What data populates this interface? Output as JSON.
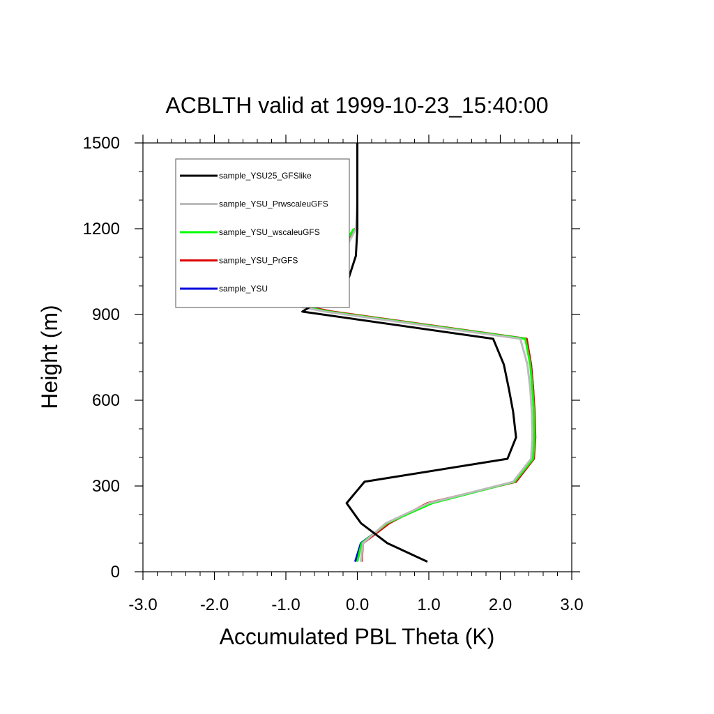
{
  "chart_data": {
    "type": "line",
    "title": "ACBLTH valid at 1999-10-23_15:40:00",
    "xlabel": "Accumulated PBL Theta (K)",
    "ylabel": "Height (m)",
    "xlim": [
      -3.0,
      3.0
    ],
    "ylim": [
      0,
      1500
    ],
    "x_ticks": [
      "-3.0",
      "-2.0",
      "-1.0",
      "0.0",
      "1.0",
      "2.0",
      "3.0"
    ],
    "y_ticks": [
      "0",
      "300",
      "600",
      "900",
      "1200",
      "1500"
    ],
    "legend_placement": "top-left",
    "grid": false,
    "series": [
      {
        "name": "sample_YSU25_GFSlike",
        "color": "#000000",
        "points": [
          [
            0.98,
            35
          ],
          [
            0.42,
            100
          ],
          [
            0.05,
            170
          ],
          [
            -0.15,
            240
          ],
          [
            0.1,
            315
          ],
          [
            2.1,
            395
          ],
          [
            2.22,
            470
          ],
          [
            2.18,
            560
          ],
          [
            2.12,
            640
          ],
          [
            2.05,
            725
          ],
          [
            1.9,
            815
          ],
          [
            -0.77,
            910
          ],
          [
            -0.15,
            1005
          ],
          [
            -0.02,
            1105
          ],
          [
            0.0,
            1200
          ],
          [
            0.0,
            1300
          ],
          [
            0.0,
            1400
          ],
          [
            0.0,
            1500
          ]
        ]
      },
      {
        "name": "sample_YSU_PrwscaleuGFS",
        "color": "#bbbbbb",
        "points": [
          [
            0.05,
            35
          ],
          [
            0.08,
            100
          ],
          [
            0.4,
            170
          ],
          [
            1.0,
            240
          ],
          [
            2.18,
            315
          ],
          [
            2.43,
            395
          ],
          [
            2.45,
            470
          ],
          [
            2.44,
            560
          ],
          [
            2.42,
            640
          ],
          [
            2.38,
            725
          ],
          [
            2.28,
            815
          ],
          [
            -0.45,
            910
          ],
          [
            -2.45,
            1005
          ],
          [
            -0.22,
            1105
          ],
          [
            -0.02,
            1200
          ],
          [
            0.0,
            1300
          ]
        ]
      },
      {
        "name": "sample_YSU_wscaleuGFS",
        "color": "#00ff00",
        "points": [
          [
            0.0,
            35
          ],
          [
            0.06,
            100
          ],
          [
            0.42,
            170
          ],
          [
            1.05,
            240
          ],
          [
            2.2,
            315
          ],
          [
            2.46,
            395
          ],
          [
            2.48,
            470
          ],
          [
            2.47,
            560
          ],
          [
            2.45,
            640
          ],
          [
            2.42,
            725
          ],
          [
            2.35,
            815
          ],
          [
            -0.4,
            910
          ],
          [
            -2.4,
            1005
          ],
          [
            -0.28,
            1105
          ],
          [
            -0.05,
            1200
          ]
        ]
      },
      {
        "name": "sample_YSU_PrGFS",
        "color": "#dd0000",
        "points": [
          [
            0.06,
            35
          ],
          [
            0.08,
            100
          ],
          [
            0.45,
            170
          ],
          [
            0.98,
            240
          ],
          [
            2.22,
            315
          ],
          [
            2.47,
            395
          ],
          [
            2.49,
            470
          ],
          [
            2.48,
            560
          ],
          [
            2.46,
            640
          ],
          [
            2.43,
            725
          ],
          [
            2.37,
            815
          ],
          [
            -0.35,
            910
          ],
          [
            -2.3,
            1005
          ],
          [
            -0.3,
            1105
          ],
          [
            -0.03,
            1200
          ]
        ]
      },
      {
        "name": "sample_YSU",
        "color": "#0000dd",
        "points": [
          [
            -0.03,
            35
          ],
          [
            0.05,
            100
          ],
          [
            0.43,
            170
          ],
          [
            1.02,
            240
          ],
          [
            2.2,
            315
          ],
          [
            2.46,
            395
          ],
          [
            2.48,
            470
          ],
          [
            2.47,
            560
          ],
          [
            2.46,
            640
          ],
          [
            2.43,
            725
          ],
          [
            2.36,
            815
          ],
          [
            -0.38,
            910
          ],
          [
            -2.35,
            1005
          ],
          [
            -0.27,
            1105
          ],
          [
            -0.03,
            1200
          ]
        ]
      }
    ]
  }
}
